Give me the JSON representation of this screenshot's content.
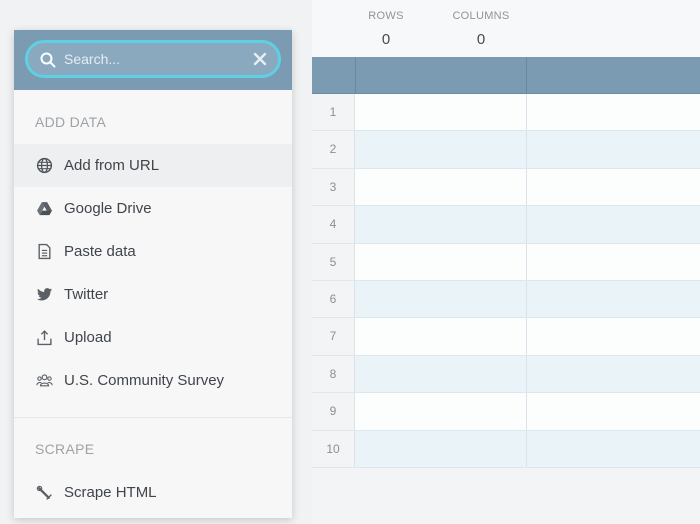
{
  "search": {
    "placeholder": "Search..."
  },
  "sections": {
    "add_data": "ADD DATA",
    "scrape": "SCRAPE"
  },
  "add_data_items": [
    {
      "label": "Add from URL",
      "icon": "globe-icon"
    },
    {
      "label": "Google Drive",
      "icon": "google-drive-icon"
    },
    {
      "label": "Paste data",
      "icon": "document-icon"
    },
    {
      "label": "Twitter",
      "icon": "twitter-icon"
    },
    {
      "label": "Upload",
      "icon": "upload-icon"
    },
    {
      "label": "U.S. Community Survey",
      "icon": "people-icon"
    }
  ],
  "scrape_items": [
    {
      "label": "Scrape HTML",
      "icon": "scrape-tool-icon"
    }
  ],
  "stats": {
    "rows_label": "ROWS",
    "rows_value": "0",
    "columns_label": "COLUMNS",
    "columns_value": "0"
  },
  "grid": {
    "row_numbers": [
      "1",
      "2",
      "3",
      "4",
      "5",
      "6",
      "7",
      "8",
      "9",
      "10"
    ]
  },
  "colors": {
    "header_blue": "#7b9bb3",
    "search_focus": "#5fd0e4",
    "stripe": "#eaf4f8"
  }
}
